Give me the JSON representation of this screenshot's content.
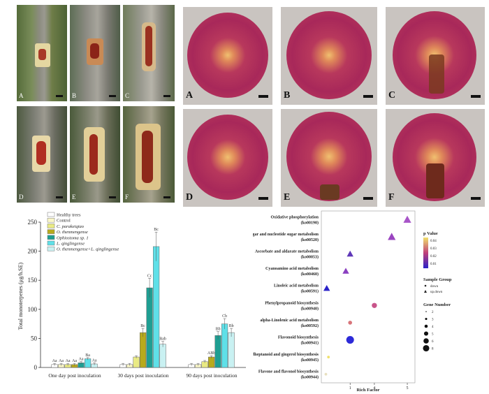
{
  "photos": {
    "bark_labels": [
      "A",
      "B",
      "C",
      "D",
      "E",
      "F"
    ],
    "disc_labels": [
      "A",
      "B",
      "C",
      "D",
      "E",
      "F"
    ]
  },
  "bar_chart": {
    "ylabel": "Total monoterpenes (μg/h.SE)",
    "yticks": [
      "0",
      "50",
      "100",
      "150",
      "200",
      "250"
    ],
    "legend": [
      {
        "label": "Healthy trees",
        "color": "#ffffff"
      },
      {
        "label": "Control",
        "color": "#faf7c8"
      },
      {
        "label": "C. parakeiqiao",
        "color": "#e9ea84"
      },
      {
        "label": "O. thenmengense",
        "color": "#b8aa1c"
      },
      {
        "label": "Ophiostoma sp. 1",
        "color": "#1f9e92"
      },
      {
        "label": "L. qinglingense",
        "color": "#5fe0e8"
      },
      {
        "label": "O. thenmengense+L. qinglingense",
        "color": "#c9f1f2"
      }
    ],
    "groups": [
      "One day post inoculation",
      "30 days post inoculation",
      "90 days post inoculation"
    ]
  },
  "chart_data": {
    "type": "bar",
    "ylabel": "Total monoterpenes (μg/h.SE)",
    "ylim": [
      0,
      250
    ],
    "categories": [
      "One day post inoculation",
      "30 days post inoculation",
      "90 days post inoculation"
    ],
    "series": [
      {
        "name": "Healthy trees",
        "values": [
          5,
          5,
          5
        ],
        "labels": [
          "Aa",
          "",
          ""
        ],
        "color": "#ffffff"
      },
      {
        "name": "Control",
        "values": [
          5,
          5,
          5
        ],
        "labels": [
          "Aa",
          "",
          ""
        ],
        "color": "#faf7c8"
      },
      {
        "name": "C. parakeiqiao",
        "values": [
          5,
          18,
          10
        ],
        "labels": [
          "Aa",
          "",
          ""
        ],
        "color": "#e9ea84"
      },
      {
        "name": "O. thenmengense",
        "values": [
          5,
          60,
          18
        ],
        "labels": [
          "Aa",
          "Bc",
          "ABb"
        ],
        "color": "#b8aa1c"
      },
      {
        "name": "Ophiostoma sp. 1",
        "values": [
          8,
          137,
          55
        ],
        "labels": [
          "Aa",
          "Cc",
          "Bb"
        ],
        "color": "#1f9e92"
      },
      {
        "name": "L. qinglingense",
        "values": [
          15,
          208,
          75
        ],
        "labels": [
          "Ba",
          "Bc",
          "Cb"
        ],
        "color": "#5fe0e8"
      },
      {
        "name": "O. thenmengense+L. qinglingense",
        "values": [
          6,
          40,
          60
        ],
        "labels": [
          "Aa",
          "Bab",
          "Bb"
        ],
        "color": "#c9f1f2"
      }
    ]
  },
  "bubble_chart": {
    "xlabel": "Rich Factor",
    "xticks": [
      "1",
      "4",
      "5"
    ],
    "pathways": [
      {
        "name": "Oxidative phosphorylation",
        "id": "(ko00190)",
        "rich": 0.96,
        "size": 4,
        "color": "#a855c8",
        "shape": "triangle"
      },
      {
        "name": "Amino sugar and nucleotide sugar metabolism",
        "id": "(ko00520)",
        "rich": 0.78,
        "size": 4,
        "color": "#9a44c0",
        "shape": "triangle"
      },
      {
        "name": "Ascorbate and aldarate metabolism",
        "id": "(ko00053)",
        "rich": 0.3,
        "size": 3,
        "color": "#5f37b8",
        "shape": "triangle"
      },
      {
        "name": "Cyanoamino acid metabolism",
        "id": "(ko00460)",
        "rich": 0.25,
        "size": 3,
        "color": "#8a3fc0",
        "shape": "triangle"
      },
      {
        "name": "Linoleic acid metabolism",
        "id": "(ko00591)",
        "rich": 0.03,
        "size": 3,
        "color": "#2a22c8",
        "shape": "triangle"
      },
      {
        "name": "Phenylpropanoid biosynthesis",
        "id": "(ko00940)",
        "rich": 0.58,
        "size": 3,
        "color": "#c8548a",
        "shape": "circle"
      },
      {
        "name": "alpha-Linolenic acid metabolism",
        "id": "(ko00592)",
        "rich": 0.3,
        "size": 2,
        "color": "#d8747a",
        "shape": "circle"
      },
      {
        "name": "Flavonoid biosynthesis",
        "id": "(ko00941)",
        "rich": 0.3,
        "size": 5,
        "color": "#2d2ad8",
        "shape": "circle"
      },
      {
        "name": "Stilbenoid, diarylheptanoid and gingerol biosynthesis",
        "id": "(ko00945)",
        "rich": 0.05,
        "size": 1,
        "color": "#f0e06a",
        "shape": "circle"
      },
      {
        "name": "Flavone and flavonol biosynthesis",
        "id": "(ko00944)",
        "rich": 0.02,
        "size": 1,
        "color": "#e8e0c0",
        "shape": "circle"
      }
    ],
    "legend_pvalue_title": "p Value",
    "legend_pvalue_ticks": [
      "0.04",
      "0.03",
      "0.02",
      "0.01"
    ],
    "legend_group_title": "Sample Group",
    "legend_group_items": [
      "down",
      "up.down"
    ],
    "legend_gene_title": "Gene Number",
    "legend_gene_items": [
      "2",
      "3",
      "4",
      "5",
      "6",
      "8"
    ]
  }
}
